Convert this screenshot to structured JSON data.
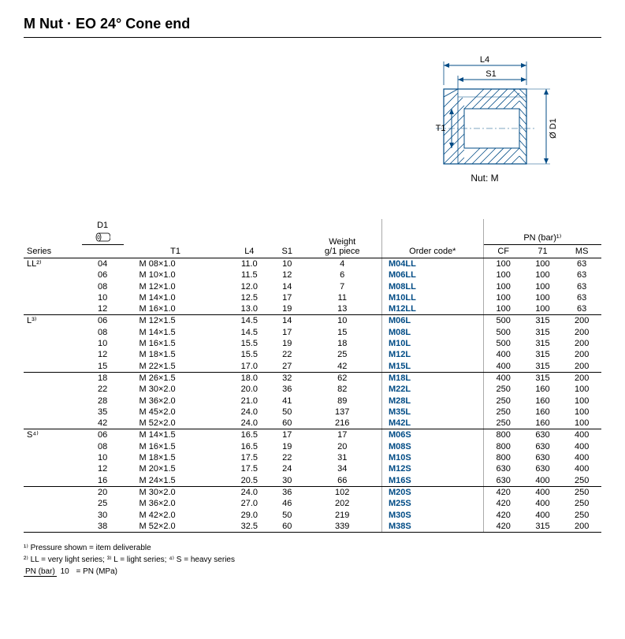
{
  "title": "M Nut · EO 24° Cone end",
  "diagram": {
    "labels": {
      "L4": "L4",
      "S1": "S1",
      "T1": "T1",
      "D1": "Ø D1",
      "caption": "Nut: M"
    },
    "color": "#004b85"
  },
  "table": {
    "headers": {
      "series": "Series",
      "d1": "D1",
      "t1": "T1",
      "l4": "L4",
      "s1": "S1",
      "weight": "Weight\ng/1 piece",
      "order": "Order code*",
      "pn_group": "PN (bar)¹⁾",
      "cf": "CF",
      "c71": "71",
      "ms": "MS"
    },
    "groups": [
      {
        "series": "LL²⁾",
        "rows": [
          {
            "d1": "04",
            "t1": "M 08×1.0",
            "l4": "11.0",
            "s1": "10",
            "w": "4",
            "code": "M04LL",
            "cf": "100",
            "c71": "100",
            "ms": "63"
          },
          {
            "d1": "06",
            "t1": "M 10×1.0",
            "l4": "11.5",
            "s1": "12",
            "w": "6",
            "code": "M06LL",
            "cf": "100",
            "c71": "100",
            "ms": "63"
          },
          {
            "d1": "08",
            "t1": "M 12×1.0",
            "l4": "12.0",
            "s1": "14",
            "w": "7",
            "code": "M08LL",
            "cf": "100",
            "c71": "100",
            "ms": "63"
          },
          {
            "d1": "10",
            "t1": "M 14×1.0",
            "l4": "12.5",
            "s1": "17",
            "w": "11",
            "code": "M10LL",
            "cf": "100",
            "c71": "100",
            "ms": "63"
          },
          {
            "d1": "12",
            "t1": "M 16×1.0",
            "l4": "13.0",
            "s1": "19",
            "w": "13",
            "code": "M12LL",
            "cf": "100",
            "c71": "100",
            "ms": "63"
          }
        ]
      },
      {
        "series": "L³⁾",
        "subgroups": [
          [
            {
              "d1": "06",
              "t1": "M 12×1.5",
              "l4": "14.5",
              "s1": "14",
              "w": "10",
              "code": "M06L",
              "cf": "500",
              "c71": "315",
              "ms": "200"
            },
            {
              "d1": "08",
              "t1": "M 14×1.5",
              "l4": "14.5",
              "s1": "17",
              "w": "15",
              "code": "M08L",
              "cf": "500",
              "c71": "315",
              "ms": "200"
            },
            {
              "d1": "10",
              "t1": "M 16×1.5",
              "l4": "15.5",
              "s1": "19",
              "w": "18",
              "code": "M10L",
              "cf": "500",
              "c71": "315",
              "ms": "200"
            },
            {
              "d1": "12",
              "t1": "M 18×1.5",
              "l4": "15.5",
              "s1": "22",
              "w": "25",
              "code": "M12L",
              "cf": "400",
              "c71": "315",
              "ms": "200"
            },
            {
              "d1": "15",
              "t1": "M 22×1.5",
              "l4": "17.0",
              "s1": "27",
              "w": "42",
              "code": "M15L",
              "cf": "400",
              "c71": "315",
              "ms": "200"
            }
          ],
          [
            {
              "d1": "18",
              "t1": "M 26×1.5",
              "l4": "18.0",
              "s1": "32",
              "w": "62",
              "code": "M18L",
              "cf": "400",
              "c71": "315",
              "ms": "200"
            },
            {
              "d1": "22",
              "t1": "M 30×2.0",
              "l4": "20.0",
              "s1": "36",
              "w": "82",
              "code": "M22L",
              "cf": "250",
              "c71": "160",
              "ms": "100"
            },
            {
              "d1": "28",
              "t1": "M 36×2.0",
              "l4": "21.0",
              "s1": "41",
              "w": "89",
              "code": "M28L",
              "cf": "250",
              "c71": "160",
              "ms": "100"
            },
            {
              "d1": "35",
              "t1": "M 45×2.0",
              "l4": "24.0",
              "s1": "50",
              "w": "137",
              "code": "M35L",
              "cf": "250",
              "c71": "160",
              "ms": "100"
            },
            {
              "d1": "42",
              "t1": "M 52×2.0",
              "l4": "24.0",
              "s1": "60",
              "w": "216",
              "code": "M42L",
              "cf": "250",
              "c71": "160",
              "ms": "100"
            }
          ]
        ]
      },
      {
        "series": "S⁴⁾",
        "subgroups": [
          [
            {
              "d1": "06",
              "t1": "M 14×1.5",
              "l4": "16.5",
              "s1": "17",
              "w": "17",
              "code": "M06S",
              "cf": "800",
              "c71": "630",
              "ms": "400"
            },
            {
              "d1": "08",
              "t1": "M 16×1.5",
              "l4": "16.5",
              "s1": "19",
              "w": "20",
              "code": "M08S",
              "cf": "800",
              "c71": "630",
              "ms": "400"
            },
            {
              "d1": "10",
              "t1": "M 18×1.5",
              "l4": "17.5",
              "s1": "22",
              "w": "31",
              "code": "M10S",
              "cf": "800",
              "c71": "630",
              "ms": "400"
            },
            {
              "d1": "12",
              "t1": "M 20×1.5",
              "l4": "17.5",
              "s1": "24",
              "w": "34",
              "code": "M12S",
              "cf": "630",
              "c71": "630",
              "ms": "400"
            },
            {
              "d1": "16",
              "t1": "M 24×1.5",
              "l4": "20.5",
              "s1": "30",
              "w": "66",
              "code": "M16S",
              "cf": "630",
              "c71": "400",
              "ms": "250"
            }
          ],
          [
            {
              "d1": "20",
              "t1": "M 30×2.0",
              "l4": "24.0",
              "s1": "36",
              "w": "102",
              "code": "M20S",
              "cf": "420",
              "c71": "400",
              "ms": "250"
            },
            {
              "d1": "25",
              "t1": "M 36×2.0",
              "l4": "27.0",
              "s1": "46",
              "w": "202",
              "code": "M25S",
              "cf": "420",
              "c71": "400",
              "ms": "250"
            },
            {
              "d1": "30",
              "t1": "M 42×2.0",
              "l4": "29.0",
              "s1": "50",
              "w": "219",
              "code": "M30S",
              "cf": "420",
              "c71": "400",
              "ms": "250"
            },
            {
              "d1": "38",
              "t1": "M 52×2.0",
              "l4": "32.5",
              "s1": "60",
              "w": "339",
              "code": "M38S",
              "cf": "420",
              "c71": "315",
              "ms": "200"
            }
          ]
        ]
      }
    ]
  },
  "footnotes": {
    "f1": "¹⁾ Pressure shown = item deliverable",
    "f2": "²⁾ LL = very light series;  ³⁾ L = light series;  ⁴⁾ S = heavy series",
    "frac_top": "PN (bar)",
    "frac_bot": "10",
    "frac_eq": "= PN (MPa)"
  }
}
